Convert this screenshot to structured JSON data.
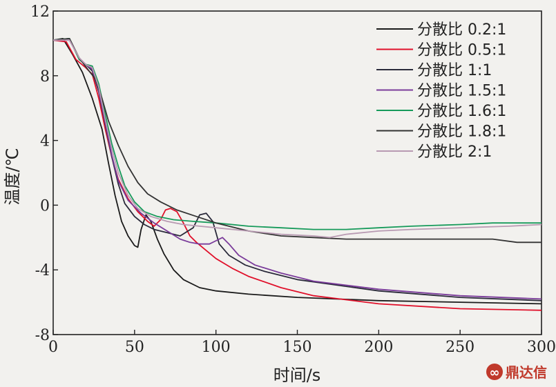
{
  "chart_data": {
    "type": "line",
    "xlabel": "时间/s",
    "ylabel": "温度/℃",
    "xlim": [
      0,
      300
    ],
    "ylim": [
      -8,
      12
    ],
    "xticks": [
      0,
      50,
      100,
      150,
      200,
      250,
      300
    ],
    "yticks": [
      -8,
      -4,
      0,
      4,
      8,
      12
    ],
    "legend_position": "top-right",
    "grid": false,
    "series": [
      {
        "name": "分散比 0.2:1",
        "color": "#1a1a1a",
        "points": [
          [
            0,
            10.2
          ],
          [
            6,
            10.3
          ],
          [
            12,
            9.3
          ],
          [
            18,
            8.2
          ],
          [
            24,
            6.6
          ],
          [
            30,
            4.7
          ],
          [
            34,
            2.6
          ],
          [
            38,
            0.6
          ],
          [
            42,
            -1.0
          ],
          [
            46,
            -1.9
          ],
          [
            50,
            -2.5
          ],
          [
            52,
            -2.6
          ],
          [
            54,
            -1.5
          ],
          [
            57,
            -0.6
          ],
          [
            60,
            -1.0
          ],
          [
            64,
            -2.1
          ],
          [
            68,
            -3.0
          ],
          [
            74,
            -4.0
          ],
          [
            80,
            -4.6
          ],
          [
            90,
            -5.1
          ],
          [
            100,
            -5.3
          ],
          [
            120,
            -5.5
          ],
          [
            150,
            -5.7
          ],
          [
            200,
            -5.9
          ],
          [
            250,
            -6.0
          ],
          [
            300,
            -6.1
          ]
        ]
      },
      {
        "name": "分散比 0.5:1",
        "color": "#e0102a",
        "points": [
          [
            0,
            10.2
          ],
          [
            8,
            10.1
          ],
          [
            14,
            9.0
          ],
          [
            20,
            8.5
          ],
          [
            24,
            8.1
          ],
          [
            28,
            6.6
          ],
          [
            32,
            4.7
          ],
          [
            36,
            3.0
          ],
          [
            40,
            1.6
          ],
          [
            46,
            0.4
          ],
          [
            52,
            -0.4
          ],
          [
            58,
            -1.0
          ],
          [
            62,
            -1.3
          ],
          [
            66,
            -0.9
          ],
          [
            69,
            -0.3
          ],
          [
            72,
            -0.2
          ],
          [
            76,
            -0.4
          ],
          [
            80,
            -1.1
          ],
          [
            84,
            -1.9
          ],
          [
            88,
            -2.3
          ],
          [
            94,
            -2.8
          ],
          [
            100,
            -3.3
          ],
          [
            110,
            -3.9
          ],
          [
            120,
            -4.4
          ],
          [
            140,
            -5.1
          ],
          [
            160,
            -5.6
          ],
          [
            200,
            -6.1
          ],
          [
            250,
            -6.4
          ],
          [
            300,
            -6.5
          ]
        ]
      },
      {
        "name": "分散比 1:1",
        "color": "#2a2a3a",
        "points": [
          [
            0,
            10.2
          ],
          [
            10,
            10.3
          ],
          [
            16,
            9.0
          ],
          [
            20,
            8.7
          ],
          [
            24,
            8.3
          ],
          [
            28,
            7.0
          ],
          [
            32,
            5.0
          ],
          [
            36,
            3.0
          ],
          [
            40,
            1.3
          ],
          [
            44,
            0.1
          ],
          [
            50,
            -0.7
          ],
          [
            56,
            -1.2
          ],
          [
            62,
            -1.5
          ],
          [
            70,
            -1.7
          ],
          [
            78,
            -1.9
          ],
          [
            86,
            -1.4
          ],
          [
            90,
            -0.6
          ],
          [
            94,
            -0.5
          ],
          [
            98,
            -1.0
          ],
          [
            102,
            -2.4
          ],
          [
            108,
            -3.1
          ],
          [
            118,
            -3.7
          ],
          [
            130,
            -4.1
          ],
          [
            150,
            -4.6
          ],
          [
            200,
            -5.3
          ],
          [
            250,
            -5.7
          ],
          [
            300,
            -5.9
          ]
        ]
      },
      {
        "name": "分散比 1.5:1",
        "color": "#7a3b9a",
        "points": [
          [
            0,
            10.2
          ],
          [
            10,
            10.2
          ],
          [
            16,
            9.1
          ],
          [
            20,
            8.7
          ],
          [
            24,
            8.4
          ],
          [
            28,
            7.1
          ],
          [
            32,
            5.1
          ],
          [
            36,
            3.1
          ],
          [
            40,
            1.5
          ],
          [
            46,
            0.3
          ],
          [
            54,
            -0.5
          ],
          [
            62,
            -1.1
          ],
          [
            70,
            -1.6
          ],
          [
            78,
            -2.1
          ],
          [
            84,
            -2.3
          ],
          [
            90,
            -2.4
          ],
          [
            96,
            -2.4
          ],
          [
            100,
            -2.2
          ],
          [
            104,
            -2.0
          ],
          [
            108,
            -2.4
          ],
          [
            114,
            -3.1
          ],
          [
            124,
            -3.7
          ],
          [
            140,
            -4.2
          ],
          [
            160,
            -4.7
          ],
          [
            200,
            -5.2
          ],
          [
            250,
            -5.6
          ],
          [
            300,
            -5.8
          ]
        ]
      },
      {
        "name": "分散比 1.6:1",
        "color": "#169a5a",
        "points": [
          [
            0,
            10.2
          ],
          [
            10,
            10.3
          ],
          [
            16,
            9.0
          ],
          [
            20,
            8.7
          ],
          [
            24,
            8.6
          ],
          [
            28,
            7.5
          ],
          [
            32,
            5.6
          ],
          [
            36,
            3.8
          ],
          [
            40,
            2.4
          ],
          [
            44,
            1.2
          ],
          [
            50,
            0.2
          ],
          [
            56,
            -0.4
          ],
          [
            64,
            -0.7
          ],
          [
            74,
            -0.9
          ],
          [
            86,
            -1.0
          ],
          [
            100,
            -1.1
          ],
          [
            120,
            -1.3
          ],
          [
            140,
            -1.4
          ],
          [
            160,
            -1.5
          ],
          [
            180,
            -1.5
          ],
          [
            200,
            -1.4
          ],
          [
            220,
            -1.3
          ],
          [
            250,
            -1.2
          ],
          [
            270,
            -1.1
          ],
          [
            300,
            -1.1
          ]
        ]
      },
      {
        "name": "分散比 1.8:1",
        "color": "#333333",
        "points": [
          [
            0,
            10.2
          ],
          [
            10,
            10.3
          ],
          [
            16,
            9.1
          ],
          [
            22,
            8.3
          ],
          [
            26,
            7.8
          ],
          [
            30,
            6.6
          ],
          [
            34,
            5.2
          ],
          [
            40,
            3.7
          ],
          [
            46,
            2.4
          ],
          [
            52,
            1.4
          ],
          [
            58,
            0.7
          ],
          [
            66,
            0.2
          ],
          [
            76,
            -0.3
          ],
          [
            88,
            -0.7
          ],
          [
            100,
            -1.1
          ],
          [
            120,
            -1.6
          ],
          [
            140,
            -1.9
          ],
          [
            160,
            -2.0
          ],
          [
            180,
            -2.1
          ],
          [
            200,
            -2.1
          ],
          [
            220,
            -2.1
          ],
          [
            250,
            -2.1
          ],
          [
            270,
            -2.1
          ],
          [
            285,
            -2.3
          ],
          [
            300,
            -2.3
          ]
        ]
      },
      {
        "name": "分散比 2:1",
        "color": "#b89ab2",
        "points": [
          [
            0,
            10.2
          ],
          [
            10,
            10.2
          ],
          [
            16,
            9.1
          ],
          [
            20,
            8.7
          ],
          [
            24,
            8.5
          ],
          [
            28,
            7.3
          ],
          [
            32,
            5.3
          ],
          [
            36,
            3.5
          ],
          [
            40,
            2.0
          ],
          [
            46,
            0.6
          ],
          [
            52,
            -0.2
          ],
          [
            60,
            -0.7
          ],
          [
            70,
            -1.0
          ],
          [
            80,
            -1.2
          ],
          [
            90,
            -1.3
          ],
          [
            100,
            -1.4
          ],
          [
            120,
            -1.6
          ],
          [
            140,
            -1.8
          ],
          [
            160,
            -1.9
          ],
          [
            170,
            -2.0
          ],
          [
            180,
            -1.8
          ],
          [
            200,
            -1.6
          ],
          [
            220,
            -1.5
          ],
          [
            250,
            -1.4
          ],
          [
            280,
            -1.3
          ],
          [
            300,
            -1.2
          ]
        ]
      }
    ]
  },
  "watermark": {
    "text": "鼎达信",
    "symbol": "∞",
    "color": "#c0392b"
  }
}
